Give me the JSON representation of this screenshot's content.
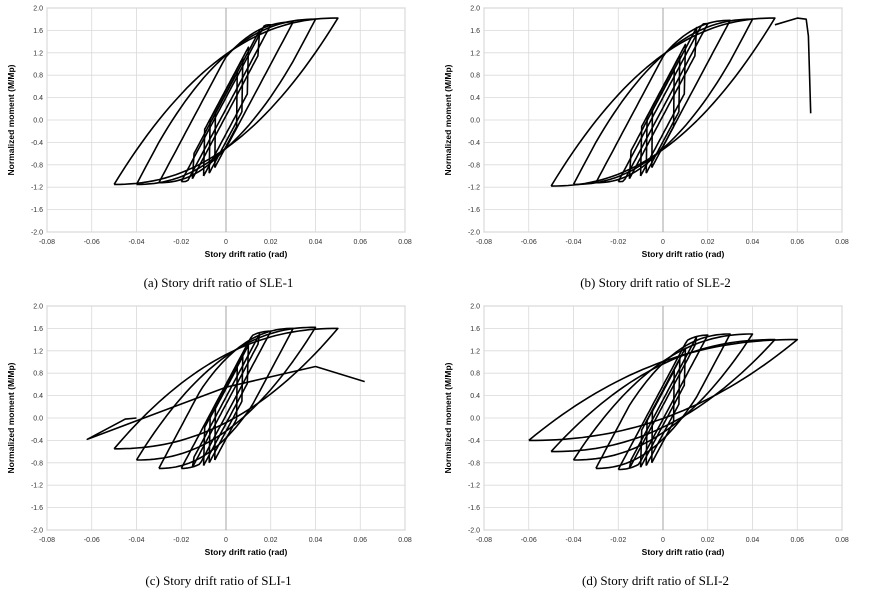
{
  "chart_data": [
    {
      "type": "line",
      "caption": "(a) Story drift ratio of SLE-1",
      "xlabel": "Story drift ratio (rad)",
      "ylabel": "Normalized moment (M/Mp)",
      "xlim": [
        -0.08,
        0.08
      ],
      "ylim": [
        -2.0,
        2.0
      ],
      "xticks": [
        -0.08,
        -0.06,
        -0.04,
        -0.02,
        0,
        0.02,
        0.04,
        0.06,
        0.08
      ],
      "yticks": [
        -2.0,
        -1.6,
        -1.2,
        -0.8,
        -0.4,
        0.0,
        0.4,
        0.8,
        1.2,
        1.6,
        2.0
      ],
      "grid": true,
      "loops": [
        {
          "d": 0.005,
          "pos": 0.85,
          "neg": -0.85
        },
        {
          "d": 0.0075,
          "pos": 1.1,
          "neg": -0.95
        },
        {
          "d": 0.01,
          "pos": 1.3,
          "neg": -1.0
        },
        {
          "d": 0.015,
          "pos": 1.6,
          "neg": -1.05
        },
        {
          "d": 0.02,
          "pos": 1.7,
          "neg": -1.1
        },
        {
          "d": 0.03,
          "pos": 1.75,
          "neg": -1.12
        },
        {
          "d": 0.04,
          "pos": 1.8,
          "neg": -1.15
        },
        {
          "d": 0.05,
          "pos": 1.82,
          "neg": -1.15
        }
      ],
      "tail": []
    },
    {
      "type": "line",
      "caption": "(b) Story drift ratio of SLE-2",
      "xlabel": "Story drift ratio (rad)",
      "ylabel": "Normalized moment (M/Mp)",
      "xlim": [
        -0.08,
        0.08
      ],
      "ylim": [
        -2.0,
        2.0
      ],
      "xticks": [
        -0.08,
        -0.06,
        -0.04,
        -0.02,
        0,
        0.02,
        0.04,
        0.06,
        0.08
      ],
      "yticks": [
        -2.0,
        -1.6,
        -1.2,
        -0.8,
        -0.4,
        0.0,
        0.4,
        0.8,
        1.2,
        1.6,
        2.0
      ],
      "grid": true,
      "loops": [
        {
          "d": 0.005,
          "pos": 0.9,
          "neg": -0.85
        },
        {
          "d": 0.0075,
          "pos": 1.15,
          "neg": -0.95
        },
        {
          "d": 0.01,
          "pos": 1.35,
          "neg": -1.0
        },
        {
          "d": 0.015,
          "pos": 1.65,
          "neg": -1.05
        },
        {
          "d": 0.02,
          "pos": 1.72,
          "neg": -1.1
        },
        {
          "d": 0.03,
          "pos": 1.78,
          "neg": -1.12
        },
        {
          "d": 0.04,
          "pos": 1.8,
          "neg": -1.15
        },
        {
          "d": 0.05,
          "pos": 1.82,
          "neg": -1.18
        }
      ],
      "tail": [
        [
          0.05,
          1.7
        ],
        [
          0.06,
          1.82
        ],
        [
          0.064,
          1.8
        ],
        [
          0.065,
          1.5
        ],
        [
          0.066,
          0.12
        ]
      ]
    },
    {
      "type": "line",
      "caption": "(c) Story drift ratio of SLI-1",
      "xlabel": "Story drift ratio (rad)",
      "ylabel": "Normalized moment (M/Mp)",
      "xlim": [
        -0.08,
        0.08
      ],
      "ylim": [
        -2.0,
        2.0
      ],
      "xticks": [
        -0.08,
        -0.06,
        -0.04,
        -0.02,
        0,
        0.02,
        0.04,
        0.06,
        0.08
      ],
      "yticks": [
        -2.0,
        -1.6,
        -1.2,
        -0.8,
        -0.4,
        0.0,
        0.4,
        0.8,
        1.2,
        1.6,
        2.0
      ],
      "grid": true,
      "loops": [
        {
          "d": 0.005,
          "pos": 0.9,
          "neg": -0.75
        },
        {
          "d": 0.0075,
          "pos": 1.1,
          "neg": -0.8
        },
        {
          "d": 0.01,
          "pos": 1.3,
          "neg": -0.85
        },
        {
          "d": 0.015,
          "pos": 1.5,
          "neg": -0.88
        },
        {
          "d": 0.02,
          "pos": 1.55,
          "neg": -0.9
        },
        {
          "d": 0.03,
          "pos": 1.6,
          "neg": -0.9
        },
        {
          "d": 0.04,
          "pos": 1.62,
          "neg": -0.75
        },
        {
          "d": 0.05,
          "pos": 1.6,
          "neg": -0.55
        }
      ],
      "tail": [
        [
          0.062,
          0.65
        ],
        [
          0.04,
          0.92
        ],
        [
          0.0,
          0.55
        ],
        [
          -0.03,
          0.1
        ],
        [
          -0.06,
          -0.35
        ],
        [
          -0.062,
          -0.38
        ],
        [
          -0.045,
          -0.02
        ],
        [
          -0.04,
          0.0
        ]
      ]
    },
    {
      "type": "line",
      "caption": "(d) Story drift ratio of SLI-2",
      "xlabel": "Story drift ratio (rad)",
      "ylabel": "Normalized moment (M/Mp)",
      "xlim": [
        -0.08,
        0.08
      ],
      "ylim": [
        -2.0,
        2.0
      ],
      "xticks": [
        -0.08,
        -0.06,
        -0.04,
        -0.02,
        0,
        0.02,
        0.04,
        0.06,
        0.08
      ],
      "yticks": [
        -2.0,
        -1.6,
        -1.2,
        -0.8,
        -0.4,
        0.0,
        0.4,
        0.8,
        1.2,
        1.6,
        2.0
      ],
      "grid": true,
      "loops": [
        {
          "d": 0.005,
          "pos": 0.85,
          "neg": -0.8
        },
        {
          "d": 0.0075,
          "pos": 1.05,
          "neg": -0.85
        },
        {
          "d": 0.01,
          "pos": 1.25,
          "neg": -0.88
        },
        {
          "d": 0.015,
          "pos": 1.45,
          "neg": -0.9
        },
        {
          "d": 0.02,
          "pos": 1.48,
          "neg": -0.92
        },
        {
          "d": 0.03,
          "pos": 1.5,
          "neg": -0.9
        },
        {
          "d": 0.04,
          "pos": 1.5,
          "neg": -0.75
        },
        {
          "d": 0.05,
          "pos": 1.4,
          "neg": -0.6
        },
        {
          "d": 0.06,
          "pos": 1.4,
          "neg": -0.4
        }
      ],
      "tail": []
    }
  ]
}
